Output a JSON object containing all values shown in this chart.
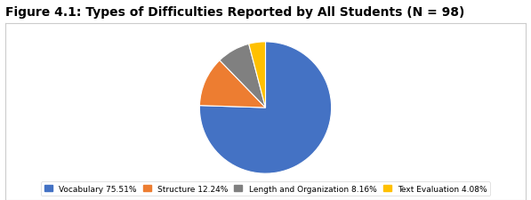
{
  "title": "Figure 4.1: Types of Difficulties Reported by All Students (N = 98)",
  "slices": [
    75.51,
    12.24,
    8.16,
    4.08
  ],
  "labels": [
    "Vocabulary 75.51%",
    "Structure 12.24%",
    "Length and Organization 8.16%",
    "Text Evaluation 4.08%"
  ],
  "colors": [
    "#4472C4",
    "#ED7D31",
    "#808080",
    "#FFC000"
  ],
  "startangle": 90,
  "title_fontsize": 10,
  "legend_fontsize": 6.5,
  "background_color": "#FFFFFF"
}
